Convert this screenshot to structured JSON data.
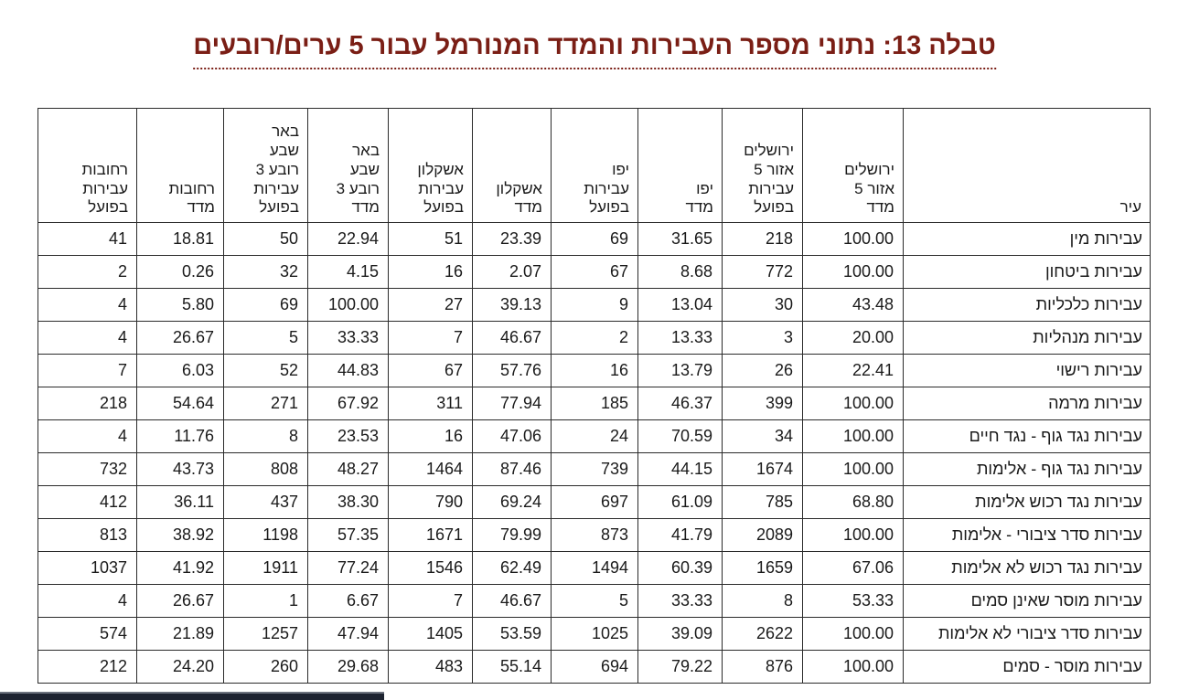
{
  "title": "טבלה 13: נתוני מספר העבירות והמדד המנורמל עבור 5 ערים/רובעים",
  "colors": {
    "title": "#7a1e15",
    "table_border": "#2b2b2b",
    "bottom_bar": "#1d2330"
  },
  "table": {
    "columns": [
      {
        "key": "city",
        "label": "עיר"
      },
      {
        "key": "jerusalem_madad",
        "label": "ירושלים\nאזור 5\nמדד"
      },
      {
        "key": "jerusalem_actual",
        "label": "ירושלים\nאזור 5\nעבירות\nבפועל"
      },
      {
        "key": "yafo_madad",
        "label": "יפו\nמדד"
      },
      {
        "key": "yafo_actual",
        "label": "יפו\nעבירות\nבפועל"
      },
      {
        "key": "ashkelon_madad",
        "label": "אשקלון\nמדד"
      },
      {
        "key": "ashkelon_actual",
        "label": "אשקלון\nעבירות\nבפועל"
      },
      {
        "key": "beersheva_madad",
        "label": "באר\nשבע\nרובע 3\nמדד"
      },
      {
        "key": "beersheva_actual",
        "label": "באר\nשבע\nרובע 3\nעבירות\nבפועל"
      },
      {
        "key": "rehovot_madad",
        "label": "רחובות\nמדד"
      },
      {
        "key": "rehovot_actual",
        "label": "רחובות\nעבירות\nבפועל"
      }
    ],
    "rows": [
      {
        "cells": [
          "עבירות מין",
          "100.00",
          "218",
          "31.65",
          "69",
          "23.39",
          "51",
          "22.94",
          "50",
          "18.81",
          "41"
        ]
      },
      {
        "cells": [
          "עבירות ביטחון",
          "100.00",
          "772",
          "8.68",
          "67",
          "2.07",
          "16",
          "4.15",
          "32",
          "0.26",
          "2"
        ]
      },
      {
        "cells": [
          "עבירות כלכליות",
          "43.48",
          "30",
          "13.04",
          "9",
          "39.13",
          "27",
          "100.00",
          "69",
          "5.80",
          "4"
        ]
      },
      {
        "cells": [
          "עבירות מנהליות",
          "20.00",
          "3",
          "13.33",
          "2",
          "46.67",
          "7",
          "33.33",
          "5",
          "26.67",
          "4"
        ]
      },
      {
        "cells": [
          "עבירות רישוי",
          "22.41",
          "26",
          "13.79",
          "16",
          "57.76",
          "67",
          "44.83",
          "52",
          "6.03",
          "7"
        ]
      },
      {
        "cells": [
          "עבירות מרמה",
          "100.00",
          "399",
          "46.37",
          "185",
          "77.94",
          "311",
          "67.92",
          "271",
          "54.64",
          "218"
        ]
      },
      {
        "cells": [
          "עבירות נגד גוף - נגד חיים",
          "100.00",
          "34",
          "70.59",
          "24",
          "47.06",
          "16",
          "23.53",
          "8",
          "11.76",
          "4"
        ]
      },
      {
        "cells": [
          "עבירות נגד גוף - אלימות",
          "100.00",
          "1674",
          "44.15",
          "739",
          "87.46",
          "1464",
          "48.27",
          "808",
          "43.73",
          "732"
        ]
      },
      {
        "cells": [
          "עבירות נגד רכוש אלימות",
          "68.80",
          "785",
          "61.09",
          "697",
          "69.24",
          "790",
          "38.30",
          "437",
          "36.11",
          "412"
        ]
      },
      {
        "cells": [
          "עבירות סדר ציבורי - אלימות",
          "100.00",
          "2089",
          "41.79",
          "873",
          "79.99",
          "1671",
          "57.35",
          "1198",
          "38.92",
          "813"
        ]
      },
      {
        "cells": [
          "עבירות נגד רכוש לא אלימות",
          "67.06",
          "1659",
          "60.39",
          "1494",
          "62.49",
          "1546",
          "77.24",
          "1911",
          "41.92",
          "1037"
        ]
      },
      {
        "cells": [
          "עבירות מוסר שאינן סמים",
          "53.33",
          "8",
          "33.33",
          "5",
          "46.67",
          "7",
          "6.67",
          "1",
          "26.67",
          "4"
        ]
      },
      {
        "cells": [
          "עבירות סדר ציבורי לא אלימות",
          "100.00",
          "2622",
          "39.09",
          "1025",
          "53.59",
          "1405",
          "47.94",
          "1257",
          "21.89",
          "574"
        ]
      },
      {
        "cells": [
          "עבירות מוסר - סמים",
          "100.00",
          "876",
          "79.22",
          "694",
          "55.14",
          "483",
          "29.68",
          "260",
          "24.20",
          "212"
        ]
      }
    ]
  }
}
